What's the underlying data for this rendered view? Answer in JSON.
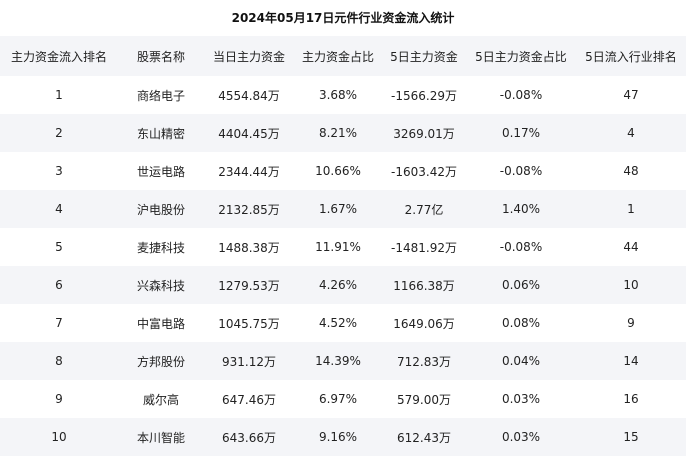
{
  "title": "2024年05月17日元件行业资金流入统计",
  "columns": [
    "主力资金流入排名",
    "股票名称",
    "当日主力资金",
    "主力资金占比",
    "5日主力资金",
    "5日主力资金占比",
    "5日流入行业排名"
  ],
  "rows": [
    [
      "1",
      "商络电子",
      "4554.84万",
      "3.68%",
      "-1566.29万",
      "-0.08%",
      "47"
    ],
    [
      "2",
      "东山精密",
      "4404.45万",
      "8.21%",
      "3269.01万",
      "0.17%",
      "4"
    ],
    [
      "3",
      "世运电路",
      "2344.44万",
      "10.66%",
      "-1603.42万",
      "-0.08%",
      "48"
    ],
    [
      "4",
      "沪电股份",
      "2132.85万",
      "1.67%",
      "2.77亿",
      "1.40%",
      "1"
    ],
    [
      "5",
      "麦捷科技",
      "1488.38万",
      "11.91%",
      "-1481.92万",
      "-0.08%",
      "44"
    ],
    [
      "6",
      "兴森科技",
      "1279.53万",
      "4.26%",
      "1166.38万",
      "0.06%",
      "10"
    ],
    [
      "7",
      "中富电路",
      "1045.75万",
      "4.52%",
      "1649.06万",
      "0.08%",
      "9"
    ],
    [
      "8",
      "方邦股份",
      "931.12万",
      "14.39%",
      "712.83万",
      "0.04%",
      "14"
    ],
    [
      "9",
      "威尔高",
      "647.46万",
      "6.97%",
      "579.00万",
      "0.03%",
      "16"
    ],
    [
      "10",
      "本川智能",
      "643.66万",
      "9.16%",
      "612.43万",
      "0.03%",
      "15"
    ]
  ]
}
